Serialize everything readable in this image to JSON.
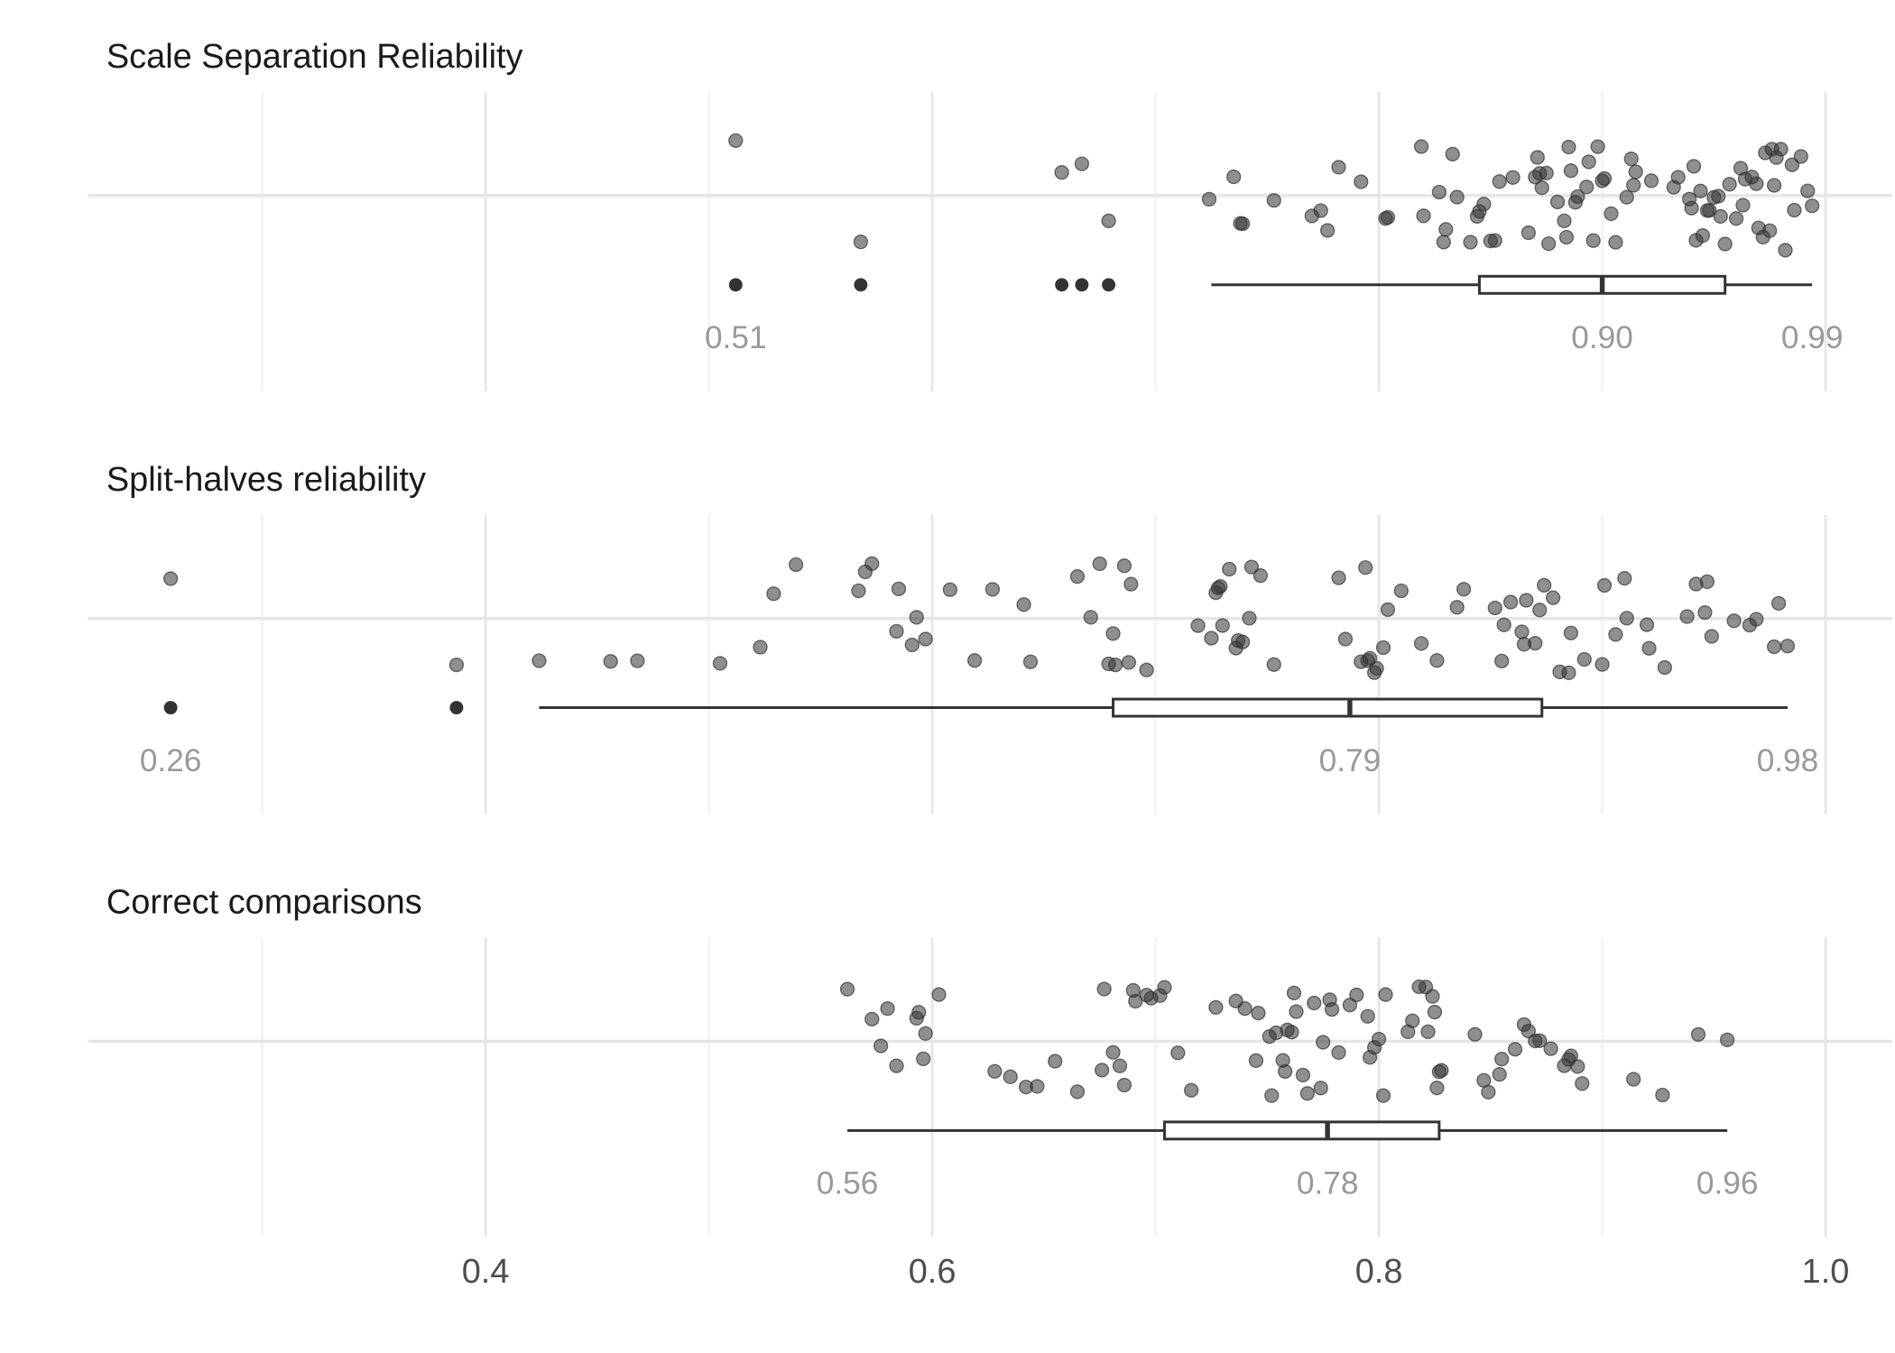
{
  "chart_data": {
    "type": "boxplot",
    "xlim": [
      0.222,
      1.03
    ],
    "xticks": [
      0.4,
      0.6,
      0.8,
      {
        "value": 1,
        "label": "1.0"
      }
    ],
    "minor_xticks": [
      0.3,
      0.5,
      0.7,
      0.9
    ],
    "grid": true,
    "point_color": "#333333",
    "box_color": "#333333",
    "panels": [
      {
        "title": "Scale Separation Reliability",
        "points": [
          0.512,
          0.568,
          0.658,
          0.667,
          0.679,
          0.724,
          0.735,
          0.738,
          0.739,
          0.753,
          0.77,
          0.774,
          0.777,
          0.782,
          0.792,
          0.803,
          0.804,
          0.819,
          0.82,
          0.827,
          0.829,
          0.83,
          0.833,
          0.835,
          0.841,
          0.844,
          0.845,
          0.847,
          0.85,
          0.852,
          0.854,
          0.86,
          0.867,
          0.87,
          0.871,
          0.872,
          0.873,
          0.875,
          0.876,
          0.88,
          0.883,
          0.884,
          0.885,
          0.886,
          0.888,
          0.889,
          0.893,
          0.894,
          0.896,
          0.898,
          0.9,
          0.901,
          0.904,
          0.906,
          0.911,
          0.913,
          0.914,
          0.915,
          0.922,
          0.932,
          0.934,
          0.939,
          0.94,
          0.941,
          0.942,
          0.944,
          0.945,
          0.947,
          0.948,
          0.95,
          0.952,
          0.953,
          0.955,
          0.957,
          0.96,
          0.962,
          0.963,
          0.964,
          0.967,
          0.969,
          0.97,
          0.972,
          0.973,
          0.975,
          0.976,
          0.977,
          0.978,
          0.98,
          0.982,
          0.985,
          0.986,
          0.989,
          0.992,
          0.994
        ],
        "box": {
          "lower_whisker": 0.725,
          "q1": 0.845,
          "median": 0.9,
          "q3": 0.955,
          "upper_whisker": 0.994
        },
        "outliers": [
          0.512,
          0.568,
          0.658,
          0.667,
          0.679
        ],
        "summary": {
          "values": [
            0.512,
            0.9,
            0.994
          ],
          "value_labels": [
            "0.51",
            "0.90",
            "0.99"
          ]
        }
      },
      {
        "title": "Split-halves reliability",
        "points": [
          0.259,
          0.387,
          0.424,
          0.456,
          0.468,
          0.505,
          0.523,
          0.529,
          0.539,
          0.567,
          0.57,
          0.573,
          0.584,
          0.585,
          0.591,
          0.593,
          0.597,
          0.608,
          0.619,
          0.627,
          0.641,
          0.644,
          0.665,
          0.671,
          0.675,
          0.679,
          0.681,
          0.682,
          0.686,
          0.688,
          0.689,
          0.696,
          0.719,
          0.725,
          0.727,
          0.728,
          0.729,
          0.73,
          0.733,
          0.736,
          0.737,
          0.739,
          0.742,
          0.743,
          0.747,
          0.753,
          0.782,
          0.785,
          0.792,
          0.794,
          0.795,
          0.796,
          0.798,
          0.799,
          0.802,
          0.804,
          0.81,
          0.819,
          0.826,
          0.835,
          0.838,
          0.852,
          0.855,
          0.856,
          0.859,
          0.864,
          0.865,
          0.866,
          0.87,
          0.872,
          0.874,
          0.878,
          0.881,
          0.885,
          0.886,
          0.892,
          0.9,
          0.901,
          0.906,
          0.91,
          0.911,
          0.92,
          0.921,
          0.928,
          0.938,
          0.942,
          0.946,
          0.947,
          0.949,
          0.959,
          0.966,
          0.969,
          0.977,
          0.979,
          0.983
        ],
        "box": {
          "lower_whisker": 0.424,
          "q1": 0.681,
          "median": 0.787,
          "q3": 0.873,
          "upper_whisker": 0.983
        },
        "outliers": [
          0.259,
          0.387
        ],
        "summary": {
          "values": [
            0.259,
            0.787,
            0.983
          ],
          "value_labels": [
            "0.26",
            "0.79",
            "0.98"
          ]
        }
      },
      {
        "title": "Correct comparisons",
        "points": [
          0.562,
          0.573,
          0.577,
          0.58,
          0.584,
          0.593,
          0.594,
          0.596,
          0.597,
          0.603,
          0.628,
          0.635,
          0.642,
          0.647,
          0.655,
          0.665,
          0.677,
          0.676,
          0.681,
          0.684,
          0.686,
          0.69,
          0.691,
          0.696,
          0.698,
          0.702,
          0.704,
          0.71,
          0.716,
          0.727,
          0.736,
          0.74,
          0.745,
          0.746,
          0.751,
          0.752,
          0.754,
          0.757,
          0.758,
          0.759,
          0.761,
          0.762,
          0.763,
          0.766,
          0.768,
          0.771,
          0.774,
          0.775,
          0.778,
          0.779,
          0.782,
          0.787,
          0.79,
          0.795,
          0.796,
          0.798,
          0.8,
          0.802,
          0.803,
          0.813,
          0.815,
          0.818,
          0.821,
          0.822,
          0.824,
          0.825,
          0.826,
          0.827,
          0.828,
          0.843,
          0.847,
          0.849,
          0.854,
          0.855,
          0.861,
          0.865,
          0.867,
          0.87,
          0.872,
          0.877,
          0.883,
          0.885,
          0.886,
          0.889,
          0.891,
          0.914,
          0.927,
          0.943,
          0.956
        ],
        "box": {
          "lower_whisker": 0.562,
          "q1": 0.704,
          "median": 0.777,
          "q3": 0.827,
          "upper_whisker": 0.956
        },
        "outliers": [],
        "summary": {
          "values": [
            0.562,
            0.777,
            0.956
          ],
          "value_labels": [
            "0.56",
            "0.78",
            "0.96"
          ]
        }
      }
    ]
  }
}
